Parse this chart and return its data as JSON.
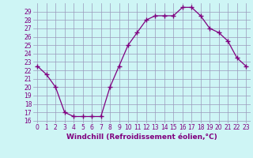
{
  "x": [
    0,
    1,
    2,
    3,
    4,
    5,
    6,
    7,
    8,
    9,
    10,
    11,
    12,
    13,
    14,
    15,
    16,
    17,
    18,
    19,
    20,
    21,
    22,
    23
  ],
  "y": [
    22.5,
    21.5,
    20.0,
    17.0,
    16.5,
    16.5,
    16.5,
    16.5,
    20.0,
    22.5,
    25.0,
    26.5,
    28.0,
    28.5,
    28.5,
    28.5,
    29.5,
    29.5,
    28.5,
    27.0,
    26.5,
    25.5,
    23.5,
    22.5
  ],
  "xlim": [
    -0.5,
    23.5
  ],
  "ylim": [
    15.7,
    30.0
  ],
  "yticks": [
    16,
    17,
    18,
    19,
    20,
    21,
    22,
    23,
    24,
    25,
    26,
    27,
    28,
    29
  ],
  "xticks": [
    0,
    1,
    2,
    3,
    4,
    5,
    6,
    7,
    8,
    9,
    10,
    11,
    12,
    13,
    14,
    15,
    16,
    17,
    18,
    19,
    20,
    21,
    22,
    23
  ],
  "xlabel": "Windchill (Refroidissement éolien,°C)",
  "line_color": "#800080",
  "marker": "+",
  "background_color": "#cef5f5",
  "grid_color": "#9999bb",
  "tick_color": "#800080",
  "label_color": "#800080",
  "tick_fontsize": 5.5,
  "xlabel_fontsize": 6.5
}
